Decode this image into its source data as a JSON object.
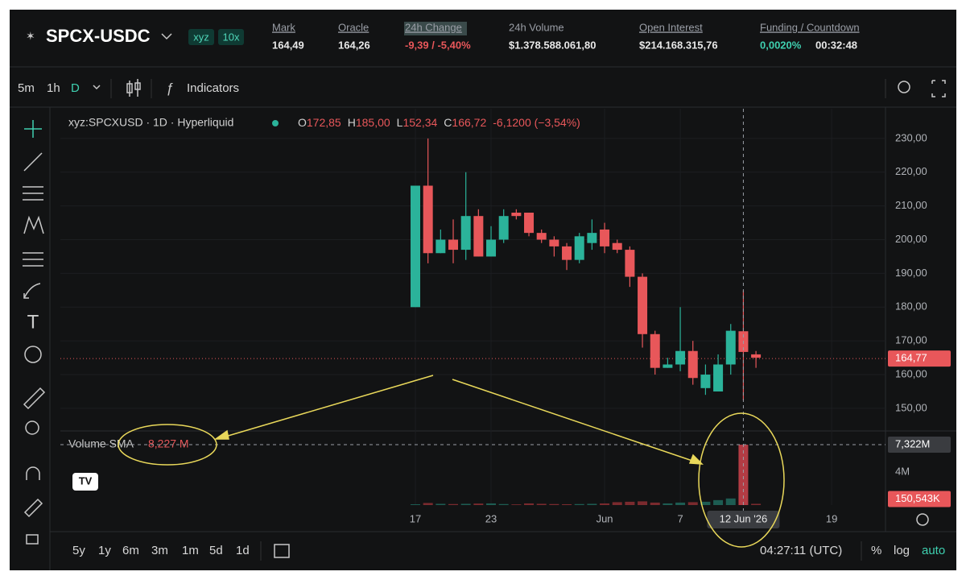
{
  "header": {
    "symbol": "SPCX-USDC",
    "badges": [
      "xyz",
      "10x"
    ],
    "stats": [
      {
        "label": "Mark",
        "value": "164,49"
      },
      {
        "label": "Oracle",
        "value": "164,26"
      },
      {
        "label": "24h Change",
        "value": "-9,39 / -5,40%"
      },
      {
        "label": "24h Volume",
        "value": "$1.378.588.061,80"
      },
      {
        "label": "Open Interest",
        "value": "$214.168.315,76"
      }
    ],
    "funding": {
      "label": "Funding / Countdown",
      "rate": "0,0020%",
      "countdown": "00:32:48"
    }
  },
  "toolbar": {
    "intervals": [
      "5m",
      "1h",
      "D"
    ],
    "indicators": "Indicators"
  },
  "legend": {
    "title": "xyz:SPCXUSD · 1D · Hyperliquid",
    "ohlc": [
      {
        "key": "O",
        "value": "172,85"
      },
      {
        "key": "H",
        "value": "185,00"
      },
      {
        "key": "L",
        "value": "152,34"
      },
      {
        "key": "C",
        "value": "166,72"
      }
    ],
    "change": "-6,1200 (−3,54%)"
  },
  "volume_legend": {
    "label": "Volume SMA",
    "value": "8,227 M"
  },
  "chart_data": {
    "type": "candlestick",
    "x": [
      "2026-05-17",
      "2026-05-18",
      "2026-05-19",
      "2026-05-20",
      "2026-05-21",
      "2026-05-22",
      "2026-05-23",
      "2026-05-24",
      "2026-05-25",
      "2026-05-26",
      "2026-05-27",
      "2026-05-28",
      "2026-05-29",
      "2026-05-30",
      "2026-05-31",
      "2026-06-01",
      "2026-06-02",
      "2026-06-03",
      "2026-06-04",
      "2026-06-05",
      "2026-06-06",
      "2026-06-07",
      "2026-06-08",
      "2026-06-09",
      "2026-06-10",
      "2026-06-11",
      "2026-06-12",
      "2026-06-13"
    ],
    "open": [
      180,
      216,
      196,
      200,
      197,
      207,
      195,
      200,
      208,
      208,
      202,
      200,
      198,
      194,
      199,
      203,
      199,
      197,
      189,
      172,
      162,
      163,
      167,
      156,
      155,
      163,
      172.85,
      166
    ],
    "high": [
      216,
      230,
      203,
      206,
      220,
      209,
      204,
      209,
      209,
      208,
      203,
      201,
      199,
      202,
      206,
      205,
      200,
      198,
      190,
      173,
      165,
      180,
      170,
      163,
      166,
      175,
      185,
      167
    ],
    "low": [
      180,
      193,
      196,
      193,
      194,
      195,
      195,
      199,
      206,
      201,
      199,
      195,
      191,
      193,
      197,
      196,
      196,
      186,
      168,
      160,
      162,
      161,
      157,
      154,
      155,
      160,
      152.34,
      162
    ],
    "close": [
      216,
      196,
      200,
      197,
      207,
      195,
      200,
      207,
      207,
      202,
      200,
      198,
      194,
      201,
      202,
      198,
      197,
      189,
      172,
      162,
      163,
      167,
      159,
      160,
      163,
      173,
      166.72,
      165
    ],
    "volume": [
      0.1,
      0.25,
      0.15,
      0.12,
      0.15,
      0.18,
      0.2,
      0.12,
      0.08,
      0.2,
      0.15,
      0.12,
      0.1,
      0.12,
      0.15,
      0.2,
      0.35,
      0.4,
      0.45,
      0.3,
      0.2,
      0.3,
      0.35,
      0.4,
      0.6,
      0.8,
      7.322,
      0.150543
    ],
    "colors": {
      "up": "#2bb39a",
      "down": "#e8575a"
    },
    "ylim": [
      143.3,
      238.8
    ],
    "yticks": [
      {
        "value": 150,
        "label": "150,00"
      },
      {
        "value": 160,
        "label": "160,00"
      },
      {
        "value": 170,
        "label": "170,00"
      },
      {
        "value": 180,
        "label": "180,00"
      },
      {
        "value": 190,
        "label": "190,00"
      },
      {
        "value": 200,
        "label": "200,00"
      },
      {
        "value": 210,
        "label": "210,00"
      },
      {
        "value": 220,
        "label": "220,00"
      },
      {
        "value": 230,
        "label": "230,00"
      }
    ],
    "volume_ylim": [
      0,
      8.5
    ],
    "volume_yticks": [
      {
        "value": 4,
        "label": "4M"
      }
    ],
    "xticks": [
      {
        "value": "2026-05-17",
        "label": "17"
      },
      {
        "value": "2026-05-23",
        "label": "23"
      },
      {
        "value": "2026-06-01",
        "label": "Jun"
      },
      {
        "value": "2026-06-07",
        "label": "7"
      },
      {
        "value": "2026-06-19",
        "label": "19"
      }
    ],
    "last_price": {
      "value": 164.77,
      "label": "164,77"
    },
    "crosshair": {
      "x": "2026-06-12",
      "label": "12 Jun '26",
      "volume": 7.322,
      "volume_label": "7,322M"
    },
    "last_volume": {
      "value": 0.150543,
      "label": "150,543K"
    }
  },
  "footer": {
    "ranges": [
      "5y",
      "1y",
      "6m",
      "3m",
      "1m",
      "5d",
      "1d"
    ],
    "time": "04:27:11 (UTC)",
    "percent": "%",
    "log": "log",
    "auto": "auto"
  }
}
